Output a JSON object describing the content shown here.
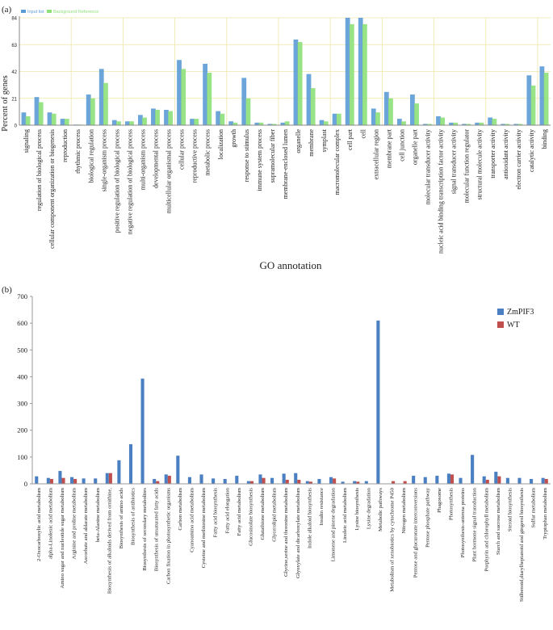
{
  "chart_data": [
    {
      "panel": "(a)",
      "type": "bar",
      "title": "",
      "xlabel": "GO annotation",
      "ylabel": "Percent of genes",
      "ylim": [
        0,
        84
      ],
      "yticks": [
        "0",
        "21",
        "42",
        "63",
        "84"
      ],
      "grid": true,
      "legend_position": "top-left",
      "colors": {
        "Input list": "#5b9bd5",
        "Background Reference": "#8ee07a"
      },
      "categories": [
        "signaling",
        "regulation of biological process",
        "cellular component organization or biogenesis",
        "reproduction",
        "rhythmic process",
        "biological regulation",
        "single-organism process",
        "positive regulation of biological process",
        "negative regulation of biological process",
        "multi-organism process",
        "developmental process",
        "multicellular organismal process",
        "cellular process",
        "reproductive process",
        "metabolic process",
        "localization",
        "growth",
        "response to stimulus",
        "immune system process",
        "supramolecular fiber",
        "membrane-enclosed lumen",
        "organelle",
        "membrane",
        "symplast",
        "macromolecular complex",
        "cell part",
        "cell",
        "extracellular region",
        "membrane part",
        "cell junction",
        "organelle part",
        "molecular transducer activity",
        "nucleic acid binding transcription factor activity",
        "signal transducer activity",
        "molecular function regulator",
        "structural molecule activity",
        "transporter activity",
        "antioxidant activity",
        "electron carrier activity",
        "catalytic activity",
        "binding"
      ],
      "series": [
        {
          "name": "Input list",
          "values": [
            10,
            22,
            10,
            5,
            0.5,
            24,
            44,
            4,
            3,
            8,
            13,
            12,
            51,
            5,
            48,
            11,
            3,
            37,
            2,
            1,
            2,
            67,
            40,
            4,
            9,
            84,
            84,
            13,
            26,
            5,
            24,
            1,
            7,
            2,
            1,
            2,
            6,
            1,
            1,
            39,
            46
          ]
        },
        {
          "name": "Background Reference",
          "values": [
            7,
            18,
            9,
            5,
            0.5,
            21,
            33,
            3,
            3,
            6,
            12,
            11,
            44,
            5,
            41,
            9,
            2,
            21,
            2,
            1,
            3,
            65,
            29,
            3,
            9,
            79,
            79,
            10,
            21,
            3,
            17,
            1,
            6,
            2,
            1,
            2,
            5,
            1,
            1,
            31,
            41
          ]
        }
      ]
    },
    {
      "panel": "(b)",
      "type": "bar",
      "title": "",
      "xlabel": "",
      "ylabel": "",
      "ylim": [
        0,
        700
      ],
      "yticks": [
        "0",
        "100",
        "200",
        "300",
        "400",
        "500",
        "600",
        "700"
      ],
      "grid": false,
      "legend_position": "top-right",
      "colors": {
        "ZmPIF3": "#4a7fc1",
        "WT": "#c0504d"
      },
      "categories": [
        "2-Oxocarboxylic acid metabolism",
        "alpha-Linolenic acid metabolism",
        "Amino sugar and nucleotide sugar metabolism",
        "Arginine and proline metabolism",
        "Ascorbate and aldarate metabolism",
        "beta-Alanine metabolism",
        "Biosynthesis of alkaloids derived from ornithine,",
        "Biosynthesis of amino acids",
        "Biosynthesis of antibiotics",
        "Biosynthesis of secondary metabolites",
        "Biosynthesis of unsaturated fatty acids",
        "Carbon fixation in photosynthetic organisms",
        "Carbon metabolism",
        "Cyanoamino acid metabolism",
        "Cysteine and methionine metabolism",
        "Fatty acid biosynthesis",
        "Fatty acid elongation",
        "Fatty acid metabolism",
        "Glucosinolate biosynthesis",
        "Glutathione metabolism",
        "Glycerolipid metabolism",
        "Glycine,serine and threonine metabolism",
        "Glyoxylate and dicarboxylate metabolism",
        "Indole alkaloid biosynthesis",
        "Insulin resistance",
        "Limonene and pinene degradation",
        "Linoleic acid metabolism",
        "Lysine biosynthesis",
        "Lysine degradation",
        "Metabolic pathways",
        "Metabolism of xenobiotics by cytochrome P450",
        "Nitrogen metabolism",
        "Pentose and glucuronate interconversions",
        "Pentose phosphate pathway",
        "Phagosome",
        "Photosynthesis",
        "Photosynthesis-antenna proteins",
        "Plant hormone signal transduction",
        "Porphyrin and chlorophyll metabolism",
        "Starch and sucrose metabolism",
        "Steroid biosynthesis",
        "Stilbenoid,diarylheptanoid and gingerol biosynthesis",
        "Sulfur metabolism",
        "Tryptophan metabolism"
      ],
      "series": [
        {
          "name": "ZmPIF3",
          "values": [
            28,
            22,
            48,
            25,
            20,
            20,
            40,
            88,
            148,
            393,
            18,
            35,
            105,
            25,
            35,
            20,
            18,
            30,
            10,
            35,
            22,
            38,
            40,
            10,
            18,
            25,
            8,
            10,
            10,
            610,
            0,
            0,
            30,
            25,
            30,
            38,
            22,
            108,
            28,
            45,
            22,
            22,
            18,
            22
          ]
        },
        {
          "name": "WT",
          "values": [
            0,
            18,
            22,
            18,
            0,
            0,
            40,
            0,
            0,
            0,
            10,
            30,
            0,
            0,
            0,
            0,
            0,
            0,
            10,
            22,
            0,
            15,
            15,
            8,
            0,
            20,
            0,
            8,
            0,
            0,
            10,
            10,
            0,
            0,
            0,
            35,
            0,
            0,
            15,
            28,
            0,
            0,
            0,
            18
          ]
        }
      ]
    }
  ]
}
